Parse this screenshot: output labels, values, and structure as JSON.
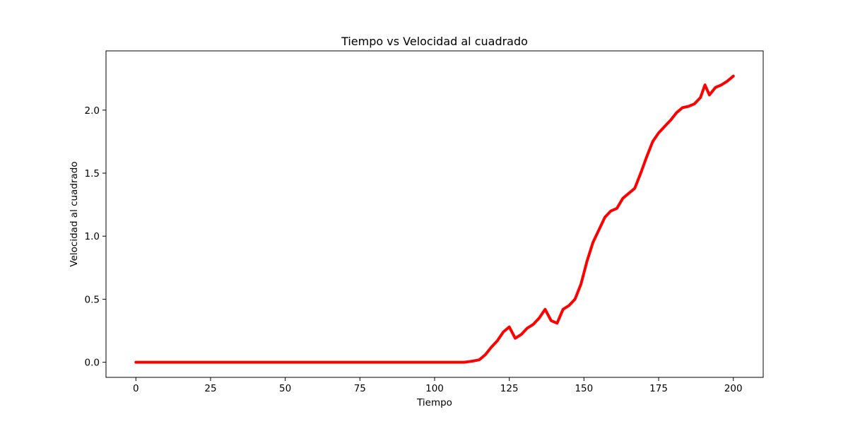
{
  "chart_data": {
    "type": "line",
    "title": "Tiempo vs Velocidad al cuadrado",
    "xlabel": "Tiempo",
    "ylabel": "Velocidad al cuadrado",
    "xlim": [
      -10,
      210
    ],
    "ylim": [
      -0.12,
      2.47
    ],
    "x_ticks": [
      0,
      25,
      50,
      75,
      100,
      125,
      150,
      175,
      200
    ],
    "x_tick_labels": [
      "0",
      "25",
      "50",
      "75",
      "100",
      "125",
      "150",
      "175",
      "200"
    ],
    "y_ticks": [
      0.0,
      0.5,
      1.0,
      1.5,
      2.0
    ],
    "y_tick_labels": [
      "0.0",
      "0.5",
      "1.0",
      "1.5",
      "2.0"
    ],
    "grid": false,
    "series": [
      {
        "color": "#ff0000",
        "x": [
          0,
          25,
          50,
          75,
          100,
          110,
          113,
          115,
          117,
          119,
          121,
          123,
          125,
          127,
          129,
          131,
          133,
          135,
          137,
          139,
          141,
          143,
          145,
          147,
          149,
          151,
          153,
          155,
          157,
          159,
          161,
          163,
          165,
          167,
          169,
          171,
          173,
          175,
          177,
          179,
          181,
          183,
          185,
          187,
          189,
          190.5,
          192,
          194,
          196,
          198,
          200
        ],
        "y": [
          0,
          0,
          0,
          0,
          0,
          0,
          0.01,
          0.02,
          0.06,
          0.12,
          0.17,
          0.24,
          0.28,
          0.19,
          0.22,
          0.27,
          0.3,
          0.35,
          0.42,
          0.33,
          0.31,
          0.42,
          0.45,
          0.5,
          0.62,
          0.8,
          0.95,
          1.05,
          1.15,
          1.2,
          1.22,
          1.3,
          1.34,
          1.38,
          1.5,
          1.63,
          1.75,
          1.82,
          1.87,
          1.92,
          1.98,
          2.02,
          2.03,
          2.05,
          2.1,
          2.2,
          2.12,
          2.18,
          2.2,
          2.23,
          2.27
        ]
      }
    ]
  }
}
